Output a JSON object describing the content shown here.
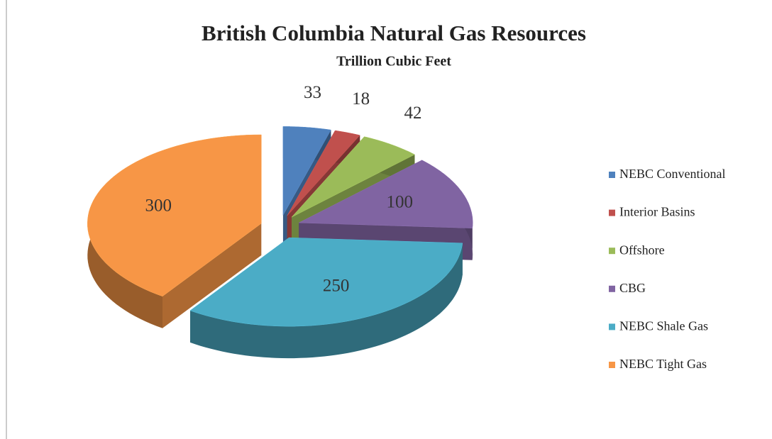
{
  "chart_data": {
    "type": "pie",
    "title": "British Columbia Natural Gas Resources",
    "subtitle": "Trillion Cubic Feet",
    "categories": [
      "NEBC Conventional",
      "Interior Basins",
      "Offshore",
      "CBG",
      "NEBC Shale Gas",
      "NEBC Tight Gas"
    ],
    "values": [
      33,
      18,
      42,
      100,
      250,
      300
    ],
    "colors": [
      "#4f81bd",
      "#c0504d",
      "#9bbb59",
      "#8064a2",
      "#4bacc6",
      "#f79646"
    ],
    "legend": "right"
  }
}
